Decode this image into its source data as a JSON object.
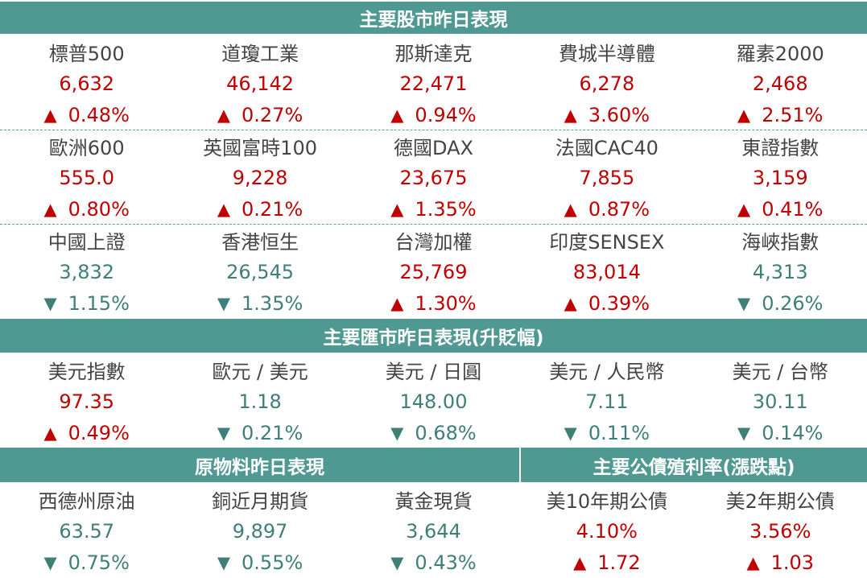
{
  "headers": {
    "stocks": "主要股市昨日表現",
    "fx": "主要匯市昨日表現(升貶幅)",
    "commodities": "原物料昨日表現",
    "bonds": "主要公債殖利率(漲跌點)"
  },
  "arrows": {
    "up": "▲",
    "down": "▼"
  },
  "colors": {
    "header_bg": "#4f9992",
    "up": "#c00000",
    "down": "#3e7f78",
    "label": "#444444"
  },
  "stocks_row1": [
    {
      "name": "標普500",
      "value": "6,632",
      "change": "0.48%",
      "dir": "up"
    },
    {
      "name": "道瓊工業",
      "value": "46,142",
      "change": "0.27%",
      "dir": "up"
    },
    {
      "name": "那斯達克",
      "value": "22,471",
      "change": "0.94%",
      "dir": "up"
    },
    {
      "name": "費城半導體",
      "value": "6,278",
      "change": "3.60%",
      "dir": "up"
    },
    {
      "name": "羅素2000",
      "value": "2,468",
      "change": "2.51%",
      "dir": "up"
    }
  ],
  "stocks_row2": [
    {
      "name": "歐洲600",
      "value": "555.0",
      "change": "0.80%",
      "dir": "up"
    },
    {
      "name": "英國富時100",
      "value": "9,228",
      "change": "0.21%",
      "dir": "up"
    },
    {
      "name": "德國DAX",
      "value": "23,675",
      "change": "1.35%",
      "dir": "up"
    },
    {
      "name": "法國CAC40",
      "value": "7,855",
      "change": "0.87%",
      "dir": "up"
    },
    {
      "name": "東證指數",
      "value": "3,159",
      "change": "0.41%",
      "dir": "up"
    }
  ],
  "stocks_row3": [
    {
      "name": "中國上證",
      "value": "3,832",
      "change": "1.15%",
      "dir": "down"
    },
    {
      "name": "香港恒生",
      "value": "26,545",
      "change": "1.35%",
      "dir": "down"
    },
    {
      "name": "台灣加權",
      "value": "25,769",
      "change": "1.30%",
      "dir": "up"
    },
    {
      "name": "印度SENSEX",
      "value": "83,014",
      "change": "0.39%",
      "dir": "up"
    },
    {
      "name": "海峽指數",
      "value": "4,313",
      "change": "0.26%",
      "dir": "down"
    }
  ],
  "fx_row": [
    {
      "name": "美元指數",
      "value": "97.35",
      "change": "0.49%",
      "dir": "up"
    },
    {
      "name": "歐元 / 美元",
      "value": "1.18",
      "change": "0.21%",
      "dir": "down"
    },
    {
      "name": "美元 / 日圓",
      "value": "148.00",
      "change": "0.68%",
      "dir": "down"
    },
    {
      "name": "美元 / 人民幣",
      "value": "7.11",
      "change": "0.11%",
      "dir": "down"
    },
    {
      "name": "美元 / 台幣",
      "value": "30.11",
      "change": "0.14%",
      "dir": "down"
    }
  ],
  "bottom_row": [
    {
      "name": "西德州原油",
      "value": "63.57",
      "change": "0.75%",
      "dir": "down"
    },
    {
      "name": "銅近月期貨",
      "value": "9,897",
      "change": "0.55%",
      "dir": "down"
    },
    {
      "name": "黃金現貨",
      "value": "3,644",
      "change": "0.43%",
      "dir": "down"
    },
    {
      "name": "美10年期公債",
      "value": "4.10%",
      "change": "1.72",
      "dir": "up"
    },
    {
      "name": "美2年期公債",
      "value": "3.56%",
      "change": "1.03",
      "dir": "up"
    }
  ]
}
